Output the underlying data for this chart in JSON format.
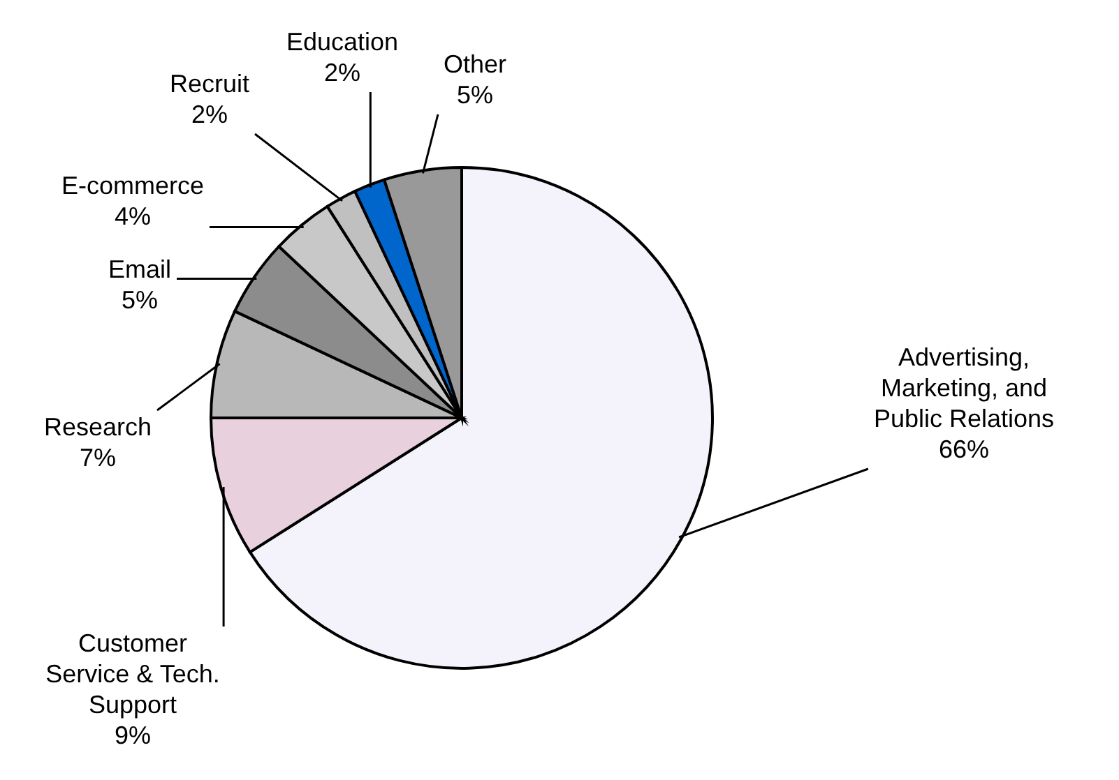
{
  "chart_data": {
    "type": "pie",
    "categories": [
      "Advertising, Marketing, and Public Relations",
      "Customer Service & Tech. Support",
      "Research",
      "Email",
      "E-commerce",
      "Recruit",
      "Education",
      "Other"
    ],
    "values": [
      66,
      9,
      7,
      5,
      4,
      2,
      2,
      5
    ],
    "colors": [
      "#f4f2fa",
      "#e8d0dc",
      "#b8b8b8",
      "#8c8c8c",
      "#c8c8c8",
      "#c0c0c0",
      "#0066cc",
      "#999999"
    ],
    "value_labels": [
      "66%",
      "9%",
      "7%",
      "5%",
      "4%",
      "2%",
      "2%",
      "5%"
    ]
  }
}
